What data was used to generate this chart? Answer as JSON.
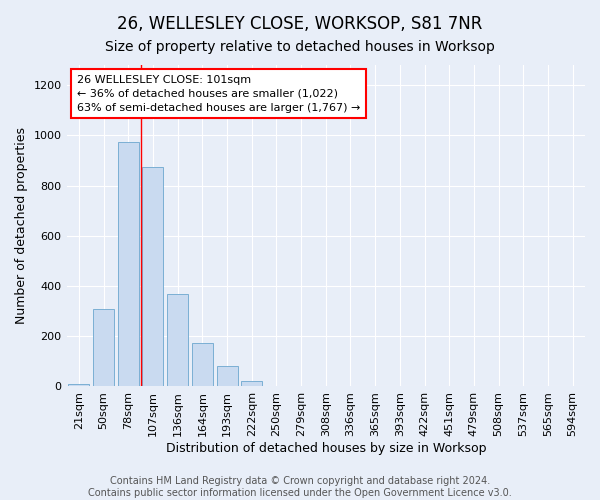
{
  "title": "26, WELLESLEY CLOSE, WORKSOP, S81 7NR",
  "subtitle": "Size of property relative to detached houses in Worksop",
  "xlabel": "Distribution of detached houses by size in Worksop",
  "ylabel": "Number of detached properties",
  "categories": [
    "21sqm",
    "50sqm",
    "78sqm",
    "107sqm",
    "136sqm",
    "164sqm",
    "193sqm",
    "222sqm",
    "250sqm",
    "279sqm",
    "308sqm",
    "336sqm",
    "365sqm",
    "393sqm",
    "422sqm",
    "451sqm",
    "479sqm",
    "508sqm",
    "537sqm",
    "565sqm",
    "594sqm"
  ],
  "values": [
    10,
    310,
    975,
    875,
    370,
    175,
    80,
    20,
    3,
    2,
    1,
    0,
    0,
    0,
    0,
    0,
    0,
    0,
    0,
    0,
    0
  ],
  "bar_color": "#c9daf0",
  "bar_edge_color": "#7bafd4",
  "annotation_text_line1": "26 WELLESLEY CLOSE: 101sqm",
  "annotation_text_line2": "← 36% of detached houses are smaller (1,022)",
  "annotation_text_line3": "63% of semi-detached houses are larger (1,767) →",
  "annotation_box_facecolor": "white",
  "annotation_box_edgecolor": "red",
  "red_line_x": 2.5,
  "ylim": [
    0,
    1280
  ],
  "yticks": [
    0,
    200,
    400,
    600,
    800,
    1000,
    1200
  ],
  "footer_line1": "Contains HM Land Registry data © Crown copyright and database right 2024.",
  "footer_line2": "Contains public sector information licensed under the Open Government Licence v3.0.",
  "background_color": "#e8eef8",
  "grid_color": "#ffffff",
  "title_fontsize": 12,
  "subtitle_fontsize": 10,
  "axis_label_fontsize": 9,
  "tick_fontsize": 8,
  "annotation_fontsize": 8,
  "footer_fontsize": 7
}
